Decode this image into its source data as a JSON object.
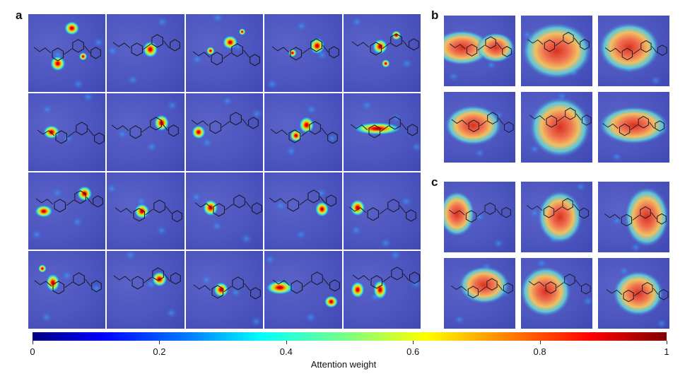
{
  "panels": {
    "a": {
      "letter": "a"
    },
    "b": {
      "letter": "b"
    },
    "c": {
      "letter": "c"
    }
  },
  "colorbar": {
    "label": "Attention weight",
    "ticks": [
      "0",
      "0.2",
      "0.4",
      "0.6",
      "0.8",
      "1"
    ],
    "tick_values": [
      0,
      0.2,
      0.4,
      0.6,
      0.8,
      1
    ],
    "colormap": [
      "#00007f",
      "#0000ff",
      "#0080ff",
      "#00ffff",
      "#7fff7f",
      "#ffff00",
      "#ff8000",
      "#ff0000",
      "#7f0000"
    ]
  }
}
